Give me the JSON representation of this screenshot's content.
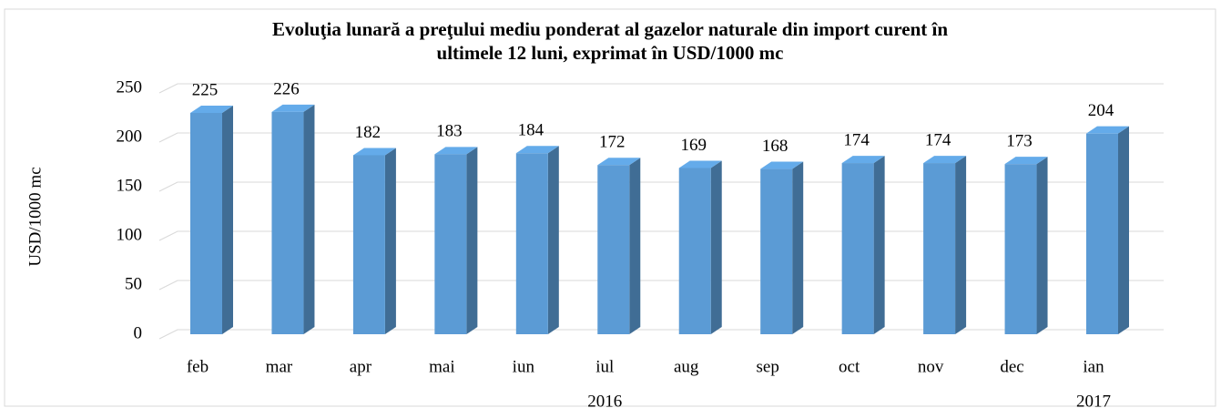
{
  "chart_data": {
    "type": "bar3d",
    "title": [
      "Evoluţia lunară a preţului mediu ponderat al gazelor naturale din import curent în",
      "ultimele 12 luni, exprimat în USD/1000 mc"
    ],
    "y_label": "USD/1000 mc",
    "categories": [
      "feb",
      "mar",
      "apr",
      "mai",
      "iun",
      "iul",
      "aug",
      "sep",
      "oct",
      "nov",
      "dec",
      "ian"
    ],
    "groups": [
      "2016",
      "2017"
    ],
    "values": [
      225,
      226,
      182,
      183,
      184,
      172,
      169,
      168,
      174,
      174,
      173,
      204
    ],
    "color": "#5b9bd5",
    "ylim": [
      0,
      250
    ],
    "yticks": [
      0,
      50,
      100,
      150,
      200,
      250
    ],
    "grid": true
  }
}
